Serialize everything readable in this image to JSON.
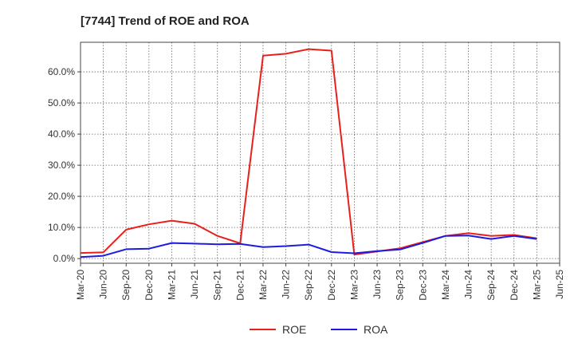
{
  "chart_data": {
    "type": "line",
    "title": "[7744]  Trend of ROE and ROA",
    "xlabel": "",
    "ylabel": "",
    "ylim": [
      -1.5,
      69.5
    ],
    "y_ticks": [
      0,
      10,
      20,
      30,
      40,
      50,
      60
    ],
    "y_tick_labels": [
      "0.0%",
      "10.0%",
      "20.0%",
      "30.0%",
      "40.0%",
      "50.0%",
      "60.0%"
    ],
    "grid": true,
    "legend_position": "bottom-center",
    "categories": [
      "Mar-20",
      "Jun-20",
      "Sep-20",
      "Dec-20",
      "Mar-21",
      "Jun-21",
      "Sep-21",
      "Dec-21",
      "Mar-22",
      "Jun-22",
      "Sep-22",
      "Dec-22",
      "Mar-23",
      "Jun-23",
      "Sep-23",
      "Dec-23",
      "Mar-24",
      "Jun-24",
      "Sep-24",
      "Dec-24",
      "Mar-25",
      "Jun-25"
    ],
    "series": [
      {
        "name": "ROE",
        "color": "#e8201c",
        "values": [
          1.8,
          2.0,
          9.3,
          11.0,
          12.2,
          11.2,
          7.3,
          4.9,
          65.2,
          65.8,
          67.3,
          66.8,
          1.3,
          2.3,
          3.3,
          5.3,
          7.3,
          8.2,
          7.3,
          7.6,
          6.5,
          null
        ]
      },
      {
        "name": "ROA",
        "color": "#1c1ce0",
        "values": [
          0.5,
          0.9,
          3.0,
          3.2,
          5.0,
          4.8,
          4.6,
          4.7,
          3.7,
          4.0,
          4.5,
          2.1,
          1.7,
          2.4,
          2.9,
          5.0,
          7.3,
          7.4,
          6.3,
          7.3,
          6.3,
          null
        ]
      }
    ]
  }
}
